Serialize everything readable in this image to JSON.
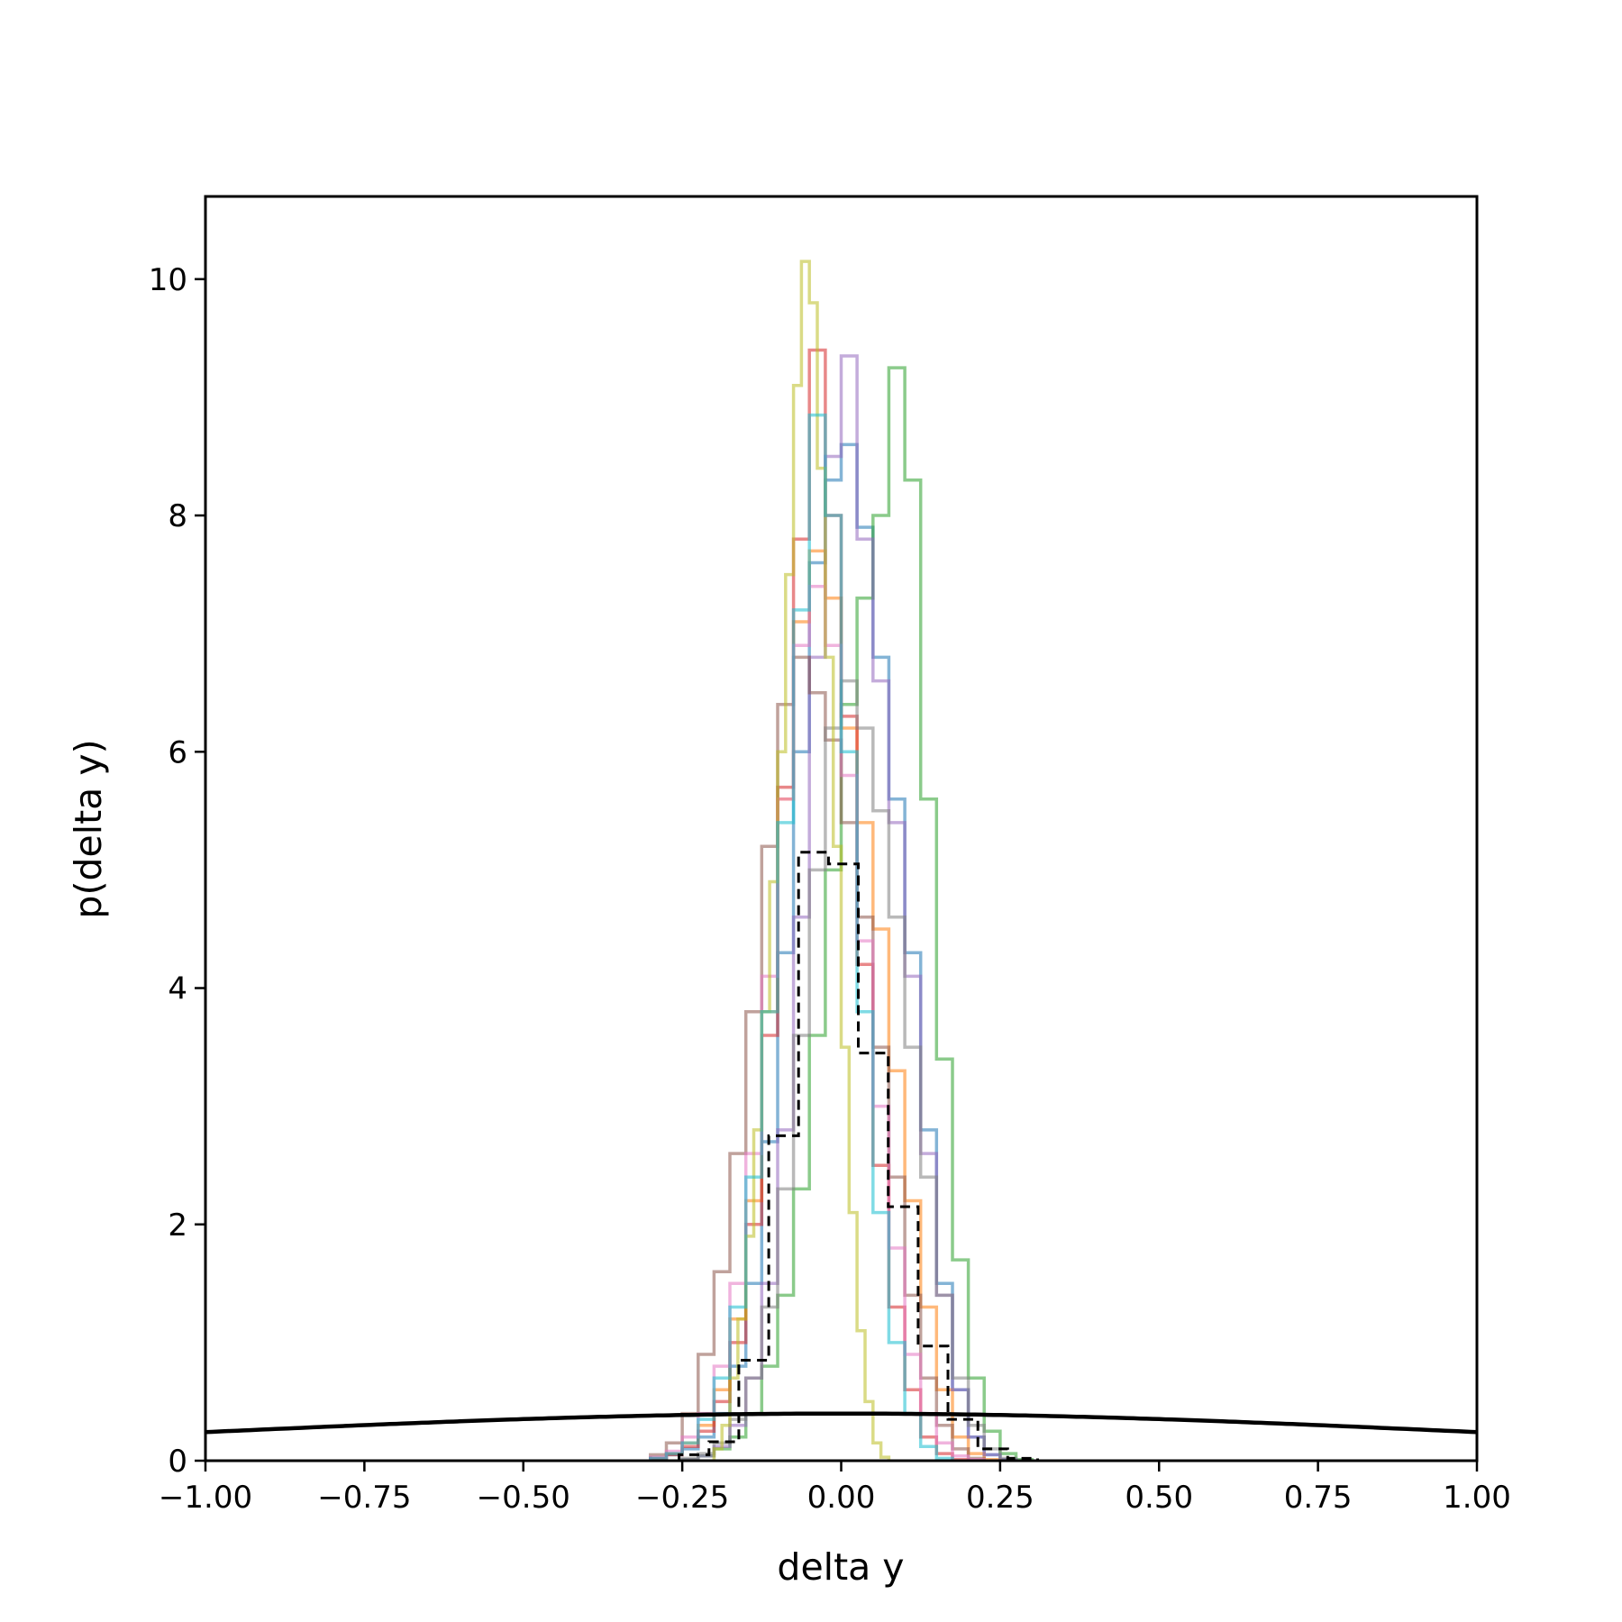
{
  "chart_data": {
    "type": "histogram",
    "xlabel": "delta y",
    "ylabel": "p(delta y)",
    "xlim": [
      -1.0,
      1.0
    ],
    "ylim": [
      0,
      10.7
    ],
    "x_ticks": [
      -1.0,
      -0.75,
      -0.5,
      -0.25,
      0.0,
      0.25,
      0.5,
      0.75,
      1.0
    ],
    "x_tick_labels": [
      "−1.00",
      "−0.75",
      "−0.50",
      "−0.25",
      "0.00",
      "0.25",
      "0.50",
      "0.75",
      "1.00"
    ],
    "y_ticks": [
      0,
      2,
      4,
      6,
      8,
      10
    ],
    "y_tick_labels": [
      "0",
      "2",
      "4",
      "6",
      "8",
      "10"
    ],
    "grid": false,
    "series": [
      {
        "color": "#1f77b4",
        "bin_width": 0.025,
        "x_start": -0.3,
        "values": [
          0.02,
          0.05,
          0.1,
          0.2,
          0.4,
          0.8,
          1.5,
          2.7,
          4.3,
          6.0,
          7.6,
          8.3,
          8.6,
          7.9,
          6.8,
          5.6,
          4.3,
          2.8,
          1.5,
          0.6,
          0.2,
          0.05,
          0.01
        ]
      },
      {
        "color": "#ff7f0e",
        "bin_width": 0.025,
        "x_start": -0.3,
        "values": [
          0.02,
          0.06,
          0.15,
          0.3,
          0.6,
          1.2,
          2.2,
          3.8,
          5.6,
          7.1,
          7.7,
          7.3,
          6.2,
          5.4,
          4.5,
          3.3,
          2.2,
          1.3,
          0.6,
          0.2,
          0.06,
          0.01
        ]
      },
      {
        "color": "#2ca02c",
        "bin_width": 0.025,
        "x_start": -0.25,
        "values": [
          0.01,
          0.04,
          0.1,
          0.2,
          0.4,
          0.8,
          1.4,
          2.3,
          3.6,
          5.0,
          6.4,
          7.3,
          8.0,
          9.25,
          8.3,
          5.6,
          3.4,
          1.7,
          0.7,
          0.25,
          0.06,
          0.01
        ]
      },
      {
        "color": "#d62728",
        "bin_width": 0.025,
        "x_start": -0.3,
        "values": [
          0.02,
          0.05,
          0.12,
          0.25,
          0.5,
          1.0,
          2.0,
          3.6,
          5.7,
          7.8,
          9.4,
          8.0,
          6.3,
          4.2,
          2.5,
          1.3,
          0.6,
          0.2,
          0.06,
          0.01
        ]
      },
      {
        "color": "#9467bd",
        "bin_width": 0.025,
        "x_start": -0.25,
        "values": [
          0.01,
          0.04,
          0.12,
          0.3,
          0.7,
          1.5,
          2.8,
          4.6,
          6.8,
          8.5,
          9.35,
          7.8,
          6.6,
          5.4,
          4.1,
          2.6,
          1.4,
          0.6,
          0.2,
          0.05,
          0.01
        ]
      },
      {
        "color": "#8c564b",
        "bin_width": 0.025,
        "x_start": -0.3,
        "values": [
          0.05,
          0.15,
          0.4,
          0.9,
          1.6,
          2.6,
          3.8,
          5.2,
          6.4,
          6.8,
          6.5,
          6.1,
          5.4,
          4.6,
          3.5,
          2.4,
          1.4,
          0.7,
          0.3,
          0.1,
          0.02
        ]
      },
      {
        "color": "#e377c2",
        "bin_width": 0.025,
        "x_start": -0.3,
        "values": [
          0.03,
          0.08,
          0.2,
          0.4,
          0.8,
          1.5,
          2.6,
          4.1,
          5.6,
          6.9,
          7.4,
          6.9,
          5.8,
          4.4,
          3.0,
          1.8,
          0.9,
          0.4,
          0.15,
          0.04,
          0.01
        ]
      },
      {
        "color": "#7f7f7f",
        "bin_width": 0.025,
        "x_start": -0.25,
        "values": [
          0.02,
          0.06,
          0.15,
          0.35,
          0.7,
          1.3,
          2.3,
          3.6,
          5.0,
          6.2,
          6.6,
          6.2,
          5.5,
          4.6,
          3.5,
          2.4,
          1.4,
          0.7,
          0.3,
          0.1,
          0.02
        ]
      },
      {
        "color": "#bcbd22",
        "bin_width": 0.0125,
        "x_start": -0.2,
        "values": [
          0.1,
          0.3,
          0.7,
          1.2,
          1.9,
          2.8,
          3.8,
          4.9,
          6.0,
          7.5,
          9.1,
          10.15,
          9.8,
          8.4,
          6.8,
          5.2,
          3.5,
          2.1,
          1.1,
          0.5,
          0.15,
          0.03
        ]
      },
      {
        "color": "#17becf",
        "bin_width": 0.025,
        "x_start": -0.3,
        "values": [
          0.02,
          0.06,
          0.15,
          0.35,
          0.7,
          1.3,
          2.4,
          3.8,
          5.4,
          7.2,
          8.85,
          8.0,
          6.0,
          3.8,
          2.1,
          1.0,
          0.4,
          0.12,
          0.02
        ]
      }
    ],
    "reference_histogram": {
      "style": "dashed",
      "color": "#000000",
      "bin_width": 0.047,
      "x_start": -0.255,
      "values": [
        0.05,
        0.16,
        0.85,
        2.75,
        5.15,
        5.05,
        3.45,
        2.15,
        0.97,
        0.35,
        0.1,
        0.02
      ]
    },
    "gaussian_curve": {
      "mean": 0.0,
      "std": 1.0,
      "color": "#000000"
    }
  }
}
